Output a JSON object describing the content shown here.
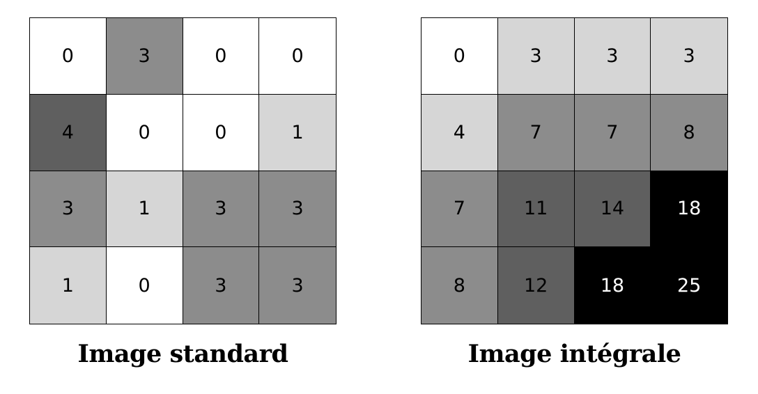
{
  "standard": {
    "caption": "Image standard",
    "cells": [
      {
        "value": "0",
        "shade": "#ffffff",
        "text_color": "#000000"
      },
      {
        "value": "3",
        "shade": "#8c8c8c",
        "text_color": "#000000"
      },
      {
        "value": "0",
        "shade": "#ffffff",
        "text_color": "#000000"
      },
      {
        "value": "0",
        "shade": "#ffffff",
        "text_color": "#000000"
      },
      {
        "value": "4",
        "shade": "#5f5f5f",
        "text_color": "#000000"
      },
      {
        "value": "0",
        "shade": "#ffffff",
        "text_color": "#000000"
      },
      {
        "value": "0",
        "shade": "#ffffff",
        "text_color": "#000000"
      },
      {
        "value": "1",
        "shade": "#d6d6d6",
        "text_color": "#000000"
      },
      {
        "value": "3",
        "shade": "#8c8c8c",
        "text_color": "#000000"
      },
      {
        "value": "1",
        "shade": "#d6d6d6",
        "text_color": "#000000"
      },
      {
        "value": "3",
        "shade": "#8c8c8c",
        "text_color": "#000000"
      },
      {
        "value": "3",
        "shade": "#8c8c8c",
        "text_color": "#000000"
      },
      {
        "value": "1",
        "shade": "#d6d6d6",
        "text_color": "#000000"
      },
      {
        "value": "0",
        "shade": "#ffffff",
        "text_color": "#000000"
      },
      {
        "value": "3",
        "shade": "#8c8c8c",
        "text_color": "#000000"
      },
      {
        "value": "3",
        "shade": "#8c8c8c",
        "text_color": "#000000"
      }
    ]
  },
  "integral": {
    "caption": "Image intégrale",
    "cells": [
      {
        "value": "0",
        "shade": "#ffffff",
        "text_color": "#000000"
      },
      {
        "value": "3",
        "shade": "#d6d6d6",
        "text_color": "#000000"
      },
      {
        "value": "3",
        "shade": "#d6d6d6",
        "text_color": "#000000"
      },
      {
        "value": "3",
        "shade": "#d6d6d6",
        "text_color": "#000000"
      },
      {
        "value": "4",
        "shade": "#d6d6d6",
        "text_color": "#000000"
      },
      {
        "value": "7",
        "shade": "#8c8c8c",
        "text_color": "#000000"
      },
      {
        "value": "7",
        "shade": "#8c8c8c",
        "text_color": "#000000"
      },
      {
        "value": "8",
        "shade": "#8c8c8c",
        "text_color": "#000000"
      },
      {
        "value": "7",
        "shade": "#8c8c8c",
        "text_color": "#000000"
      },
      {
        "value": "11",
        "shade": "#5f5f5f",
        "text_color": "#000000"
      },
      {
        "value": "14",
        "shade": "#5f5f5f",
        "text_color": "#000000"
      },
      {
        "value": "18",
        "shade": "#000000",
        "text_color": "#ffffff"
      },
      {
        "value": "8",
        "shade": "#8c8c8c",
        "text_color": "#000000"
      },
      {
        "value": "12",
        "shade": "#5f5f5f",
        "text_color": "#000000"
      },
      {
        "value": "18",
        "shade": "#000000",
        "text_color": "#ffffff"
      },
      {
        "value": "25",
        "shade": "#000000",
        "text_color": "#ffffff"
      }
    ]
  }
}
